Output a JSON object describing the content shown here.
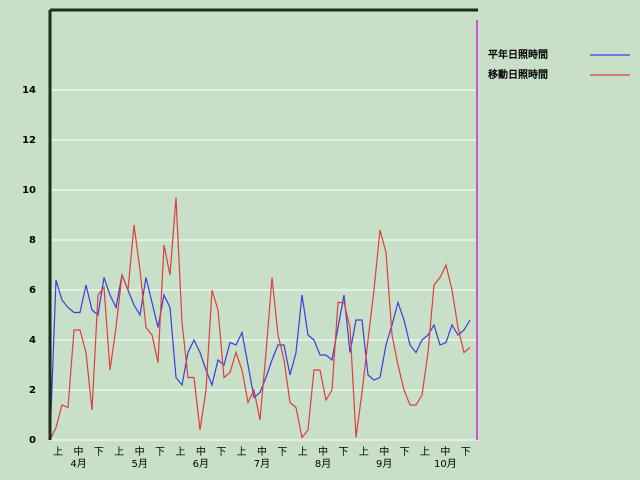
{
  "chart_data": {
    "type": "line",
    "x": [
      0,
      3,
      6,
      9,
      12,
      15,
      18,
      21,
      24,
      27,
      30,
      33,
      36,
      39,
      42,
      45,
      48,
      51,
      54,
      57,
      60,
      63,
      66,
      69,
      72,
      75,
      78,
      81,
      84,
      87,
      90,
      93,
      96,
      99,
      102,
      105,
      108,
      111,
      114,
      117,
      120,
      123,
      126,
      129,
      132,
      135,
      138,
      141,
      144,
      147,
      150,
      153,
      156,
      159,
      162,
      165,
      168,
      171,
      174,
      177,
      180,
      183,
      186,
      189,
      192,
      195,
      198,
      201,
      204,
      207,
      210
    ],
    "xlim": [
      0,
      214
    ],
    "categories": [
      "上",
      "中",
      "下",
      "上",
      "中",
      "下",
      "上",
      "中",
      "下",
      "上",
      "中",
      "下",
      "上",
      "中",
      "下",
      "上",
      "中",
      "下",
      "上",
      "中",
      "下"
    ],
    "months": [
      "4月",
      "5月",
      "6月",
      "7月",
      "8月",
      "9月",
      "10月"
    ],
    "ylim": [
      0,
      17.2
    ],
    "yticks": [
      0,
      2,
      4,
      6,
      8,
      10,
      12,
      14
    ],
    "grid": true,
    "series": [
      {
        "name": "平年日照時間",
        "color": "#3c3cdc",
        "values": [
          0,
          6.4,
          5.6,
          5.3,
          5.1,
          5.1,
          6.2,
          5.2,
          5.0,
          6.5,
          5.8,
          5.3,
          6.6,
          6.0,
          5.4,
          5.0,
          6.5,
          5.5,
          4.5,
          5.8,
          5.3,
          2.5,
          2.2,
          3.5,
          4.0,
          3.5,
          2.8,
          2.2,
          3.2,
          3.0,
          3.9,
          3.8,
          4.3,
          3.0,
          1.7,
          1.9,
          2.5,
          3.2,
          3.8,
          3.8,
          2.6,
          3.5,
          5.8,
          4.2,
          4.0,
          3.4,
          3.4,
          3.2,
          4.5,
          5.8,
          3.5,
          4.8,
          4.8,
          2.6,
          2.4,
          2.5,
          3.8,
          4.6,
          5.5,
          4.8,
          3.8,
          3.5,
          4.0,
          4.2,
          4.6,
          3.8,
          3.9,
          4.6,
          4.2,
          4.4,
          4.8
        ]
      },
      {
        "name": "移動日照時間",
        "color": "#e03c3c",
        "values": [
          0,
          0.5,
          1.4,
          1.3,
          4.4,
          4.4,
          3.5,
          1.2,
          5.8,
          6.1,
          2.8,
          4.5,
          6.6,
          6.0,
          8.6,
          6.8,
          4.5,
          4.2,
          3.1,
          7.8,
          6.6,
          9.7,
          4.7,
          2.5,
          2.5,
          0.4,
          2.0,
          6.0,
          5.2,
          2.5,
          2.7,
          3.5,
          2.8,
          1.5,
          2.0,
          0.8,
          3.5,
          6.5,
          4.2,
          3.2,
          1.5,
          1.3,
          0.1,
          0.4,
          2.8,
          2.8,
          1.6,
          2.0,
          5.5,
          5.5,
          4.5,
          0.1,
          1.9,
          4.0,
          6.0,
          8.4,
          7.5,
          4.2,
          3.0,
          2.0,
          1.4,
          1.4,
          1.8,
          3.5,
          6.2,
          6.5,
          7.0,
          6.0,
          4.5,
          3.5,
          3.7
        ]
      }
    ]
  }
}
